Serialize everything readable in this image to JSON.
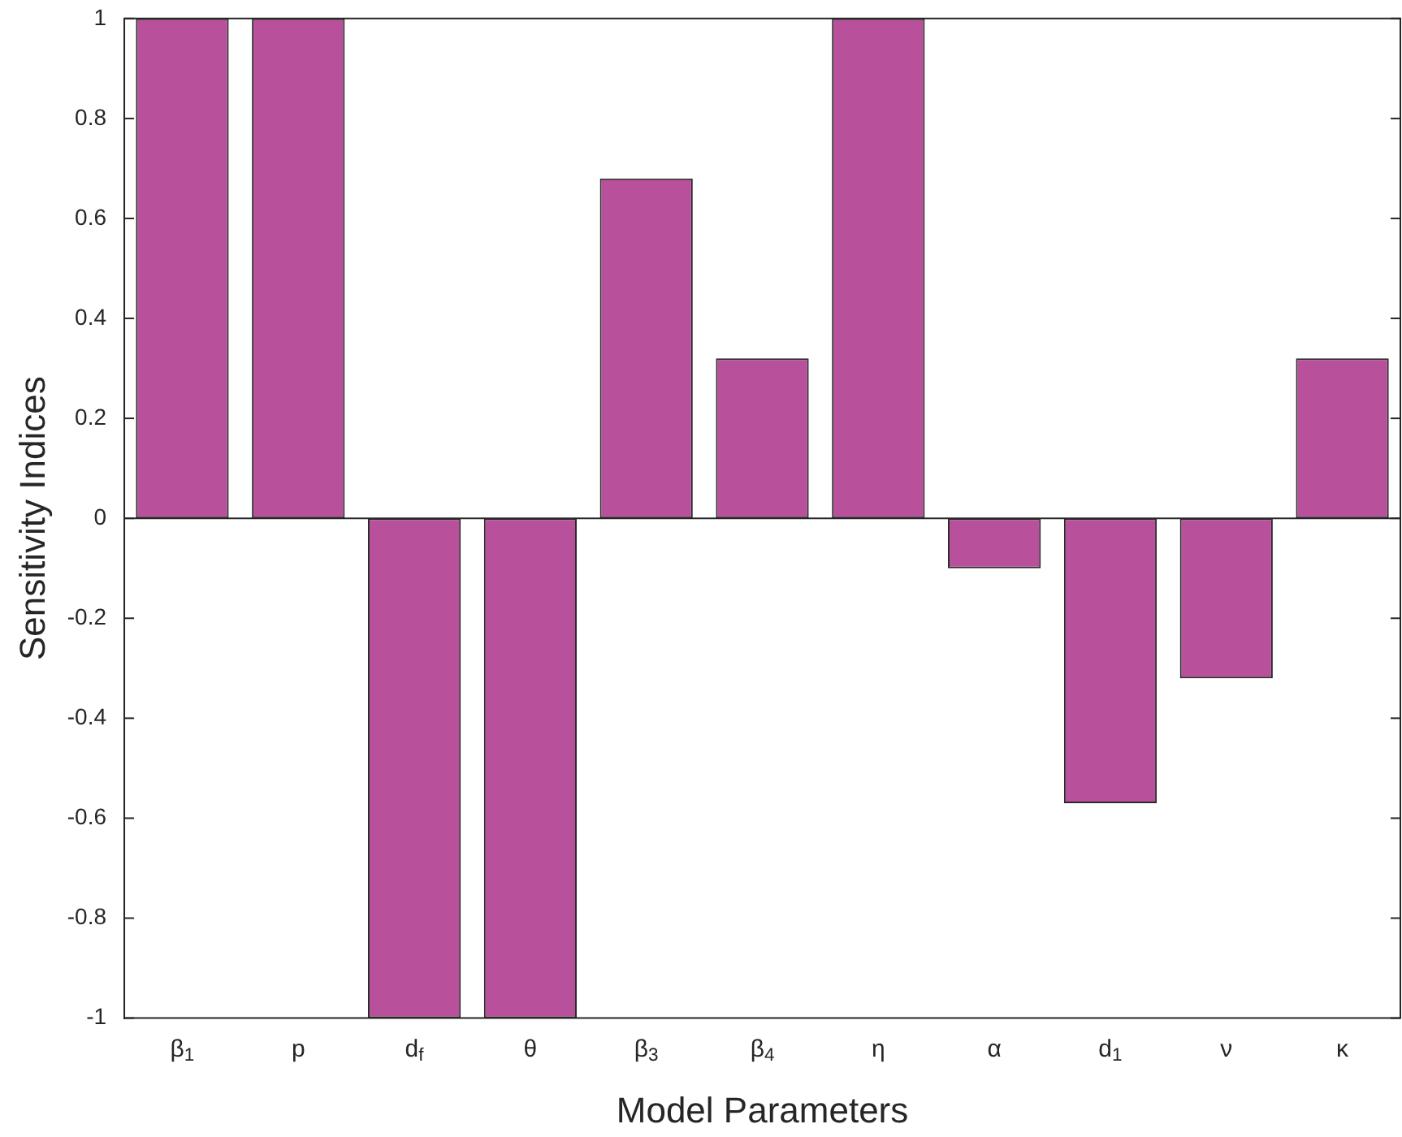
{
  "chart_data": {
    "type": "bar",
    "xlabel": "Model Parameters",
    "ylabel": "Sensitivity Indices",
    "categories": [
      "β$_{1}$",
      "p",
      "d$_{f}$",
      "θ",
      "β$_{3}$",
      "β$_{4}$",
      "η",
      "α",
      "d$_{1}$",
      "ν",
      "κ"
    ],
    "values": [
      1,
      1,
      -1,
      -1,
      0.68,
      0.32,
      1,
      -0.1,
      -0.57,
      -0.32,
      0.32
    ],
    "color": "#b8509b",
    "ylim": [
      -1,
      1
    ],
    "yticks": [
      -1,
      -0.8,
      -0.6,
      -0.4,
      -0.2,
      0,
      0.2,
      0.4,
      0.6,
      0.8,
      1
    ],
    "ref_lines": [
      {
        "axis": "y",
        "value": 0,
        "color": "#262626"
      }
    ],
    "grid": false,
    "legend": false
  }
}
